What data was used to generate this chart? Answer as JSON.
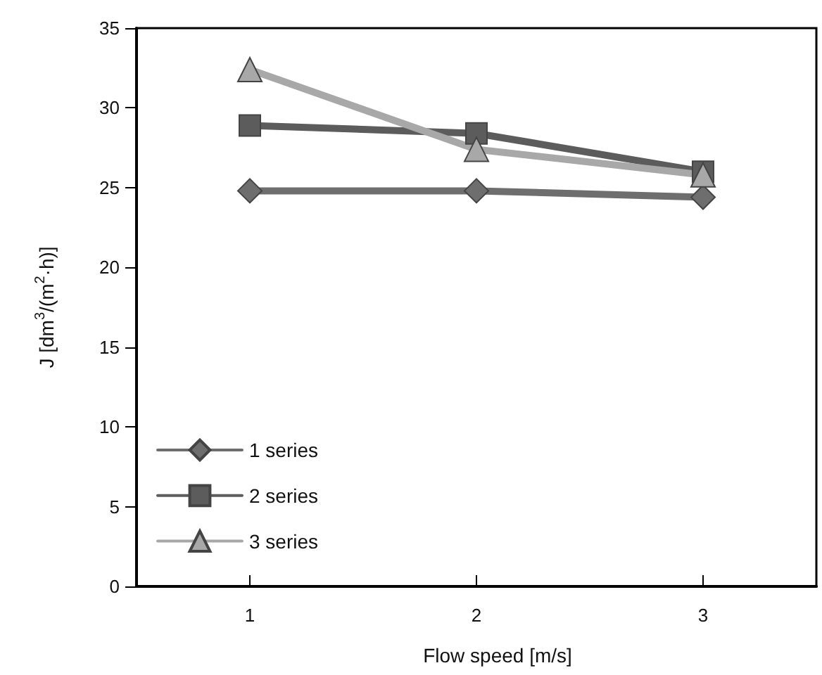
{
  "chart_data": {
    "type": "line",
    "xlabel": "Flow speed [m/s]",
    "ylabel": "J [dm$^{3}$/(m$^{2}$·h)]",
    "categories": [
      "1",
      "2",
      "3"
    ],
    "series": [
      {
        "name": "1 series",
        "color": "#6e6e6e",
        "marker": "diamond",
        "values": [
          24.8,
          24.8,
          24.4
        ]
      },
      {
        "name": "2 series",
        "color": "#5c5c5c",
        "marker": "square",
        "values": [
          28.9,
          28.4,
          26.0
        ]
      },
      {
        "name": "3 series",
        "color": "#a8a8a8",
        "marker": "triangle",
        "values": [
          32.4,
          27.4,
          25.8
        ]
      }
    ],
    "ylim": [
      0,
      35
    ],
    "yticks": [
      0,
      5,
      10,
      15,
      20,
      25,
      30,
      35
    ],
    "grid": false,
    "legend": "bottom left"
  }
}
